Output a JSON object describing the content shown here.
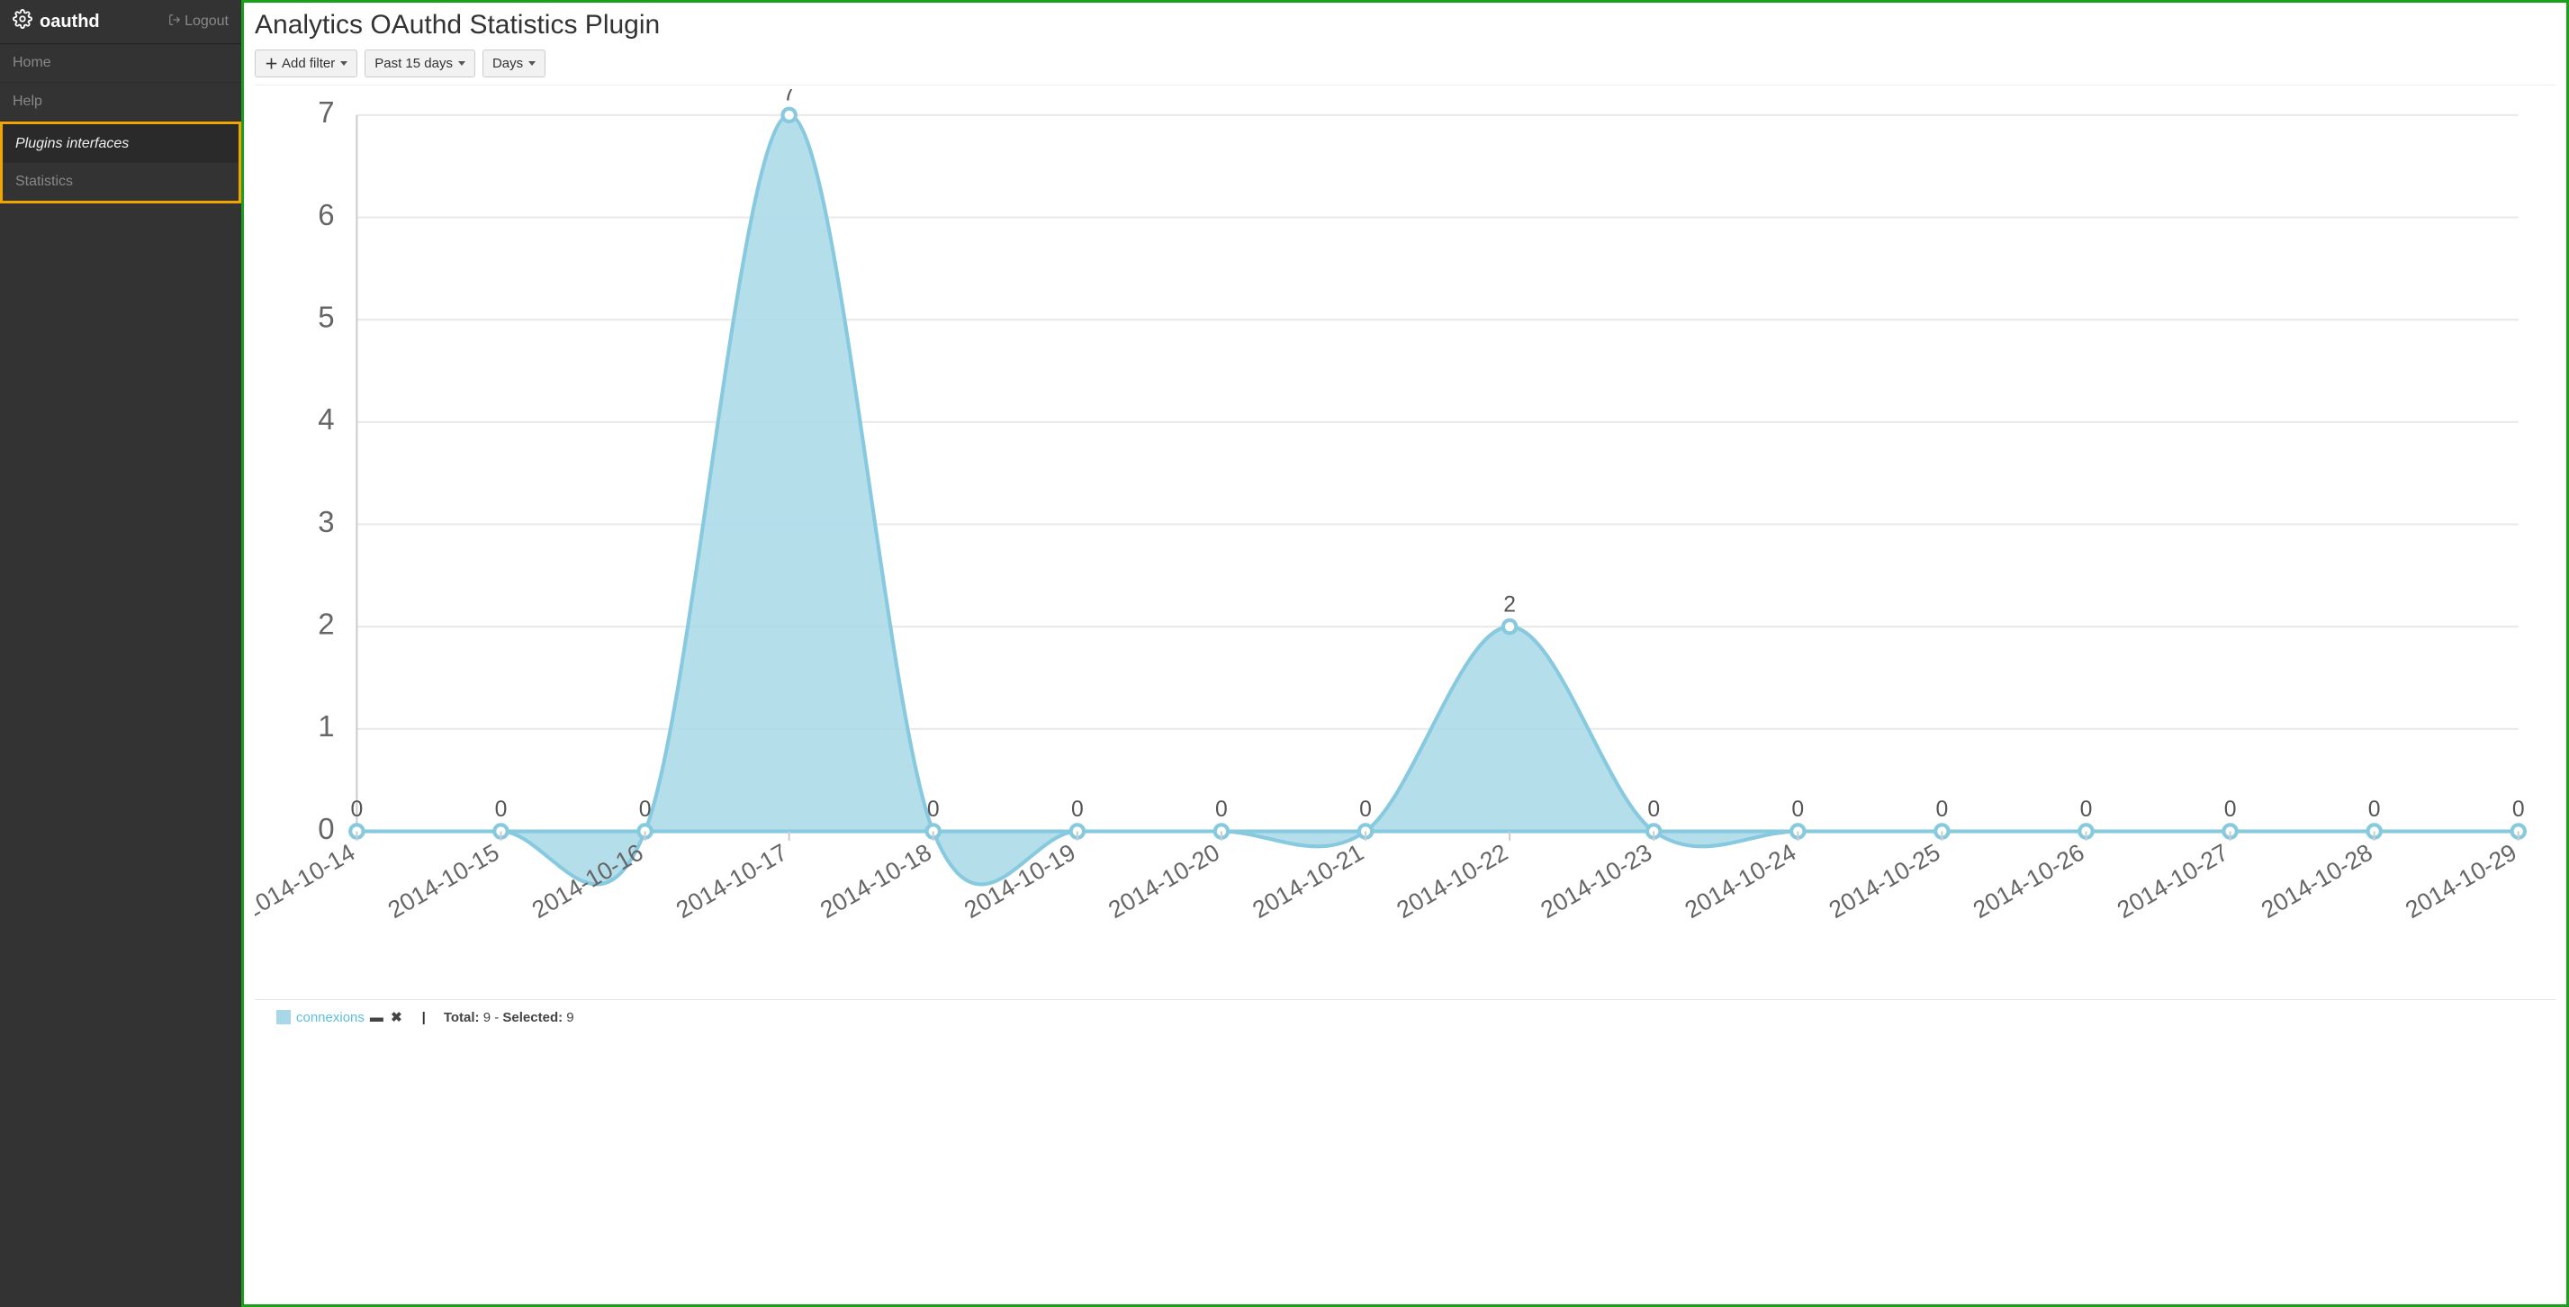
{
  "app": {
    "brand": "oauthd",
    "logout_label": "Logout"
  },
  "sidebar": {
    "items": [
      {
        "label": "Home"
      },
      {
        "label": "Help"
      }
    ],
    "section_title": "Plugins interfaces",
    "section_items": [
      {
        "label": "Statistics"
      }
    ]
  },
  "page": {
    "title": "Analytics OAuthd Statistics Plugin"
  },
  "toolbar": {
    "add_filter_label": "Add filter",
    "range_label": "Past 15 days",
    "granularity_label": "Days"
  },
  "chart": {
    "type": "area-spline",
    "series_name": "connexions",
    "series_color": "#a8d8e8",
    "series_stroke": "#87c9df",
    "point_fill": "#ffffff",
    "background_color": "#ffffff",
    "grid_color": "#e9e9e9",
    "axis_color": "#cccccc",
    "tick_text_color": "#666666",
    "value_text_color": "#555555",
    "tick_fontsize": 12,
    "value_fontsize": 12,
    "ylim": [
      0,
      7
    ],
    "ytick_step": 1,
    "x_labels": [
      "2014-10-14",
      "2014-10-15",
      "2014-10-16",
      "2014-10-17",
      "2014-10-18",
      "2014-10-19",
      "2014-10-20",
      "2014-10-21",
      "2014-10-22",
      "2014-10-23",
      "2014-10-24",
      "2014-10-25",
      "2014-10-26",
      "2014-10-27",
      "2014-10-28",
      "2014-10-29"
    ],
    "values": [
      0,
      0,
      0,
      7,
      0,
      0,
      0,
      0,
      2,
      0,
      0,
      0,
      0,
      0,
      0,
      0
    ],
    "x_label_rotation_deg": -30
  },
  "legend": {
    "total_label": "Total:",
    "total_value": "9",
    "selected_label": "Selected:",
    "selected_value": "9",
    "dash_sep": "-"
  }
}
